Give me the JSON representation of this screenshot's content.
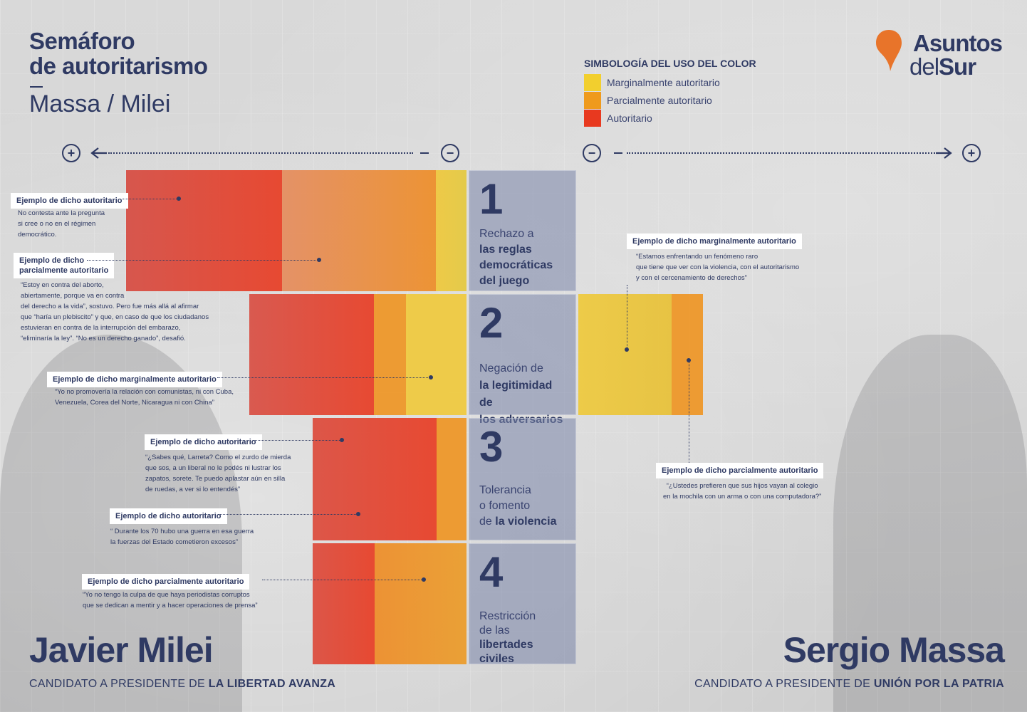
{
  "header": {
    "title_line1": "Semáforo",
    "title_line2": "de autoritarismo",
    "subtitle": "Massa / Milei"
  },
  "legend": {
    "title": "SIMBOLOGÍA DEL USO DEL COLOR",
    "items": [
      {
        "label": "Marginalmente autoritario",
        "color": "#f2cf2e"
      },
      {
        "label": "Parcialmente autoritario",
        "color": "#ef9a1c"
      },
      {
        "label": "Autoritario",
        "color": "#e8391f"
      }
    ]
  },
  "logo": {
    "line1": "Asuntos",
    "line2_a": "del",
    "line2_b": "Sur",
    "color": "#e8742a"
  },
  "axis": {
    "plus": "+",
    "minus": "−"
  },
  "categories": [
    {
      "num": "1",
      "light1": "Rechazo a",
      "bold1": "las reglas",
      "bold2": "democráticas",
      "bold3": "del juego"
    },
    {
      "num": "2",
      "light1": "Negación de",
      "bold1": "la legitimidad de",
      "bold2": "los adversarios"
    },
    {
      "num": "3",
      "light1": "Tolerancia",
      "light2": "o fomento",
      "light3": "de",
      "bold1": "la violencia"
    },
    {
      "num": "4",
      "light1": "Restricción",
      "light2": "de las",
      "bold1": "libertades",
      "bold2": "civiles"
    }
  ],
  "milei_annotations": [
    {
      "label": "Ejemplo de dicho autoritario",
      "quote_lines": [
        "No contesta ante la pregunta",
        "si cree o no en el régimen",
        "democrático."
      ]
    },
    {
      "label_line1": "Ejemplo de dicho",
      "label_line2": "parcialmente autoritario",
      "quote_lines": [
        "“Estoy en contra del aborto,",
        "abiertamente, porque va en contra",
        "del derecho a la vida”, sostuvo. Pero fue más allá al afirmar",
        "que “haría un plebiscito” y que, en caso de que los ciudadanos",
        "estuvieran en contra de la interrupción del embarazo,",
        "“eliminaría la ley”. “No es un derecho ganado”, desafió."
      ]
    },
    {
      "label": "Ejemplo de dicho marginalmente autoritario",
      "quote_lines": [
        "“Yo no promovería la relación con comunistas, ni con Cuba,",
        "Venezuela, Corea del Norte, Nicaragua ni con China”"
      ]
    },
    {
      "label": "Ejemplo de dicho autoritario",
      "quote_lines": [
        "“¿Sabes qué, Larreta? Como el zurdo de mierda",
        "que sos, a un liberal no le podés ni lustrar los",
        "zapatos, sorete. Te puedo aplastar aún en silla",
        "de ruedas, a ver si lo entendés”"
      ]
    },
    {
      "label": "Ejemplo de dicho autoritario",
      "quote_lines": [
        "“ Durante los 70 hubo una guerra en esa guerra",
        "la fuerzas del Estado cometieron excesos”"
      ]
    },
    {
      "label": "Ejemplo de dicho parcialmente autoritario",
      "quote_lines": [
        "“Yo no tengo la culpa de que haya periodistas corruptos",
        "que se dedican a mentir y a hacer operaciones de prensa”"
      ]
    }
  ],
  "massa_annotations": [
    {
      "label": "Ejemplo de dicho marginalmente autoritario",
      "quote_lines": [
        "“Estamos enfrentando un fenómeno raro",
        "que tiene que ver con la violencia, con el autoritarismo",
        "y con el cercenamiento de derechos”"
      ]
    },
    {
      "label": "Ejemplo de dicho parcialmente autoritario",
      "quote_lines": [
        "“¿Ustedes prefieren que sus hijos vayan al colegio",
        "en la mochila con un arma o con una computadora?”"
      ]
    }
  ],
  "candidates": {
    "left": {
      "name": "Javier Milei",
      "role_light": "CANDIDATO A PRESIDENTE DE ",
      "role_bold": "LA LIBERTAD AVANZA"
    },
    "right": {
      "name": "Sergio Massa",
      "role_light": "CANDIDATO A PRESIDENTE DE ",
      "role_bold": "UNIÓN POR LA PATRIA"
    }
  }
}
